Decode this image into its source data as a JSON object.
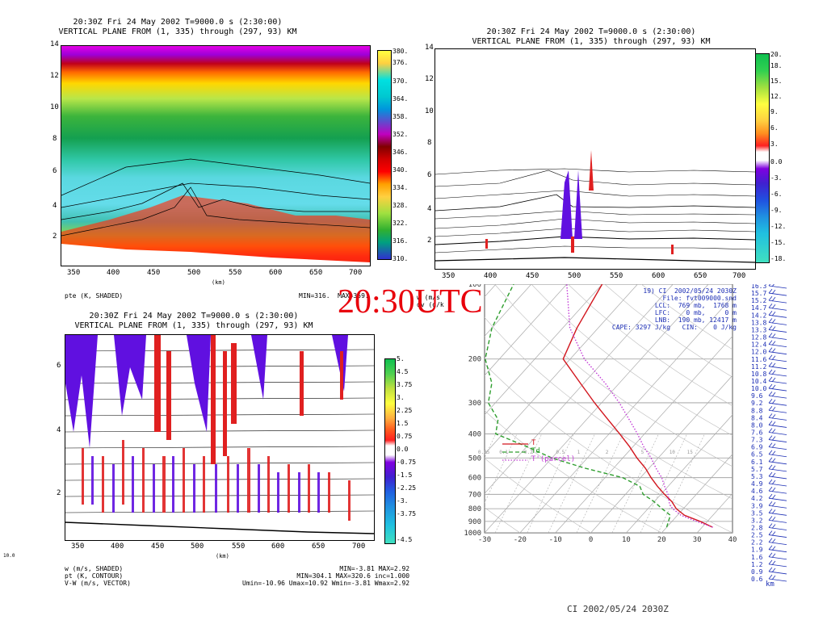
{
  "panel1": {
    "title1": "20:30Z Fri 24 May 2002      T=9000.0 s (2:30:00)",
    "title2": "VERTICAL PLANE FROM (1, 335) through (297, 93) KM",
    "yticks": [
      "14",
      "12",
      "10",
      "8",
      "6",
      "4",
      "2"
    ],
    "xticks": [
      "350",
      "400",
      "450",
      "500",
      "550",
      "600",
      "650",
      "700"
    ],
    "xunit": "(km)",
    "colorbar": [
      "380.",
      "376.",
      "370.",
      "364.",
      "358.",
      "352.",
      "346.",
      "340.",
      "334.",
      "328.",
      "322.",
      "316.",
      "310."
    ],
    "foot_left": "pte (K, SHADED)",
    "foot_right": "MIN=316.  MAX=359."
  },
  "panel2": {
    "title1": "20:30Z Fri 24 May 2002      T=9000.0 s (2:30:00)",
    "title2": "VERTICAL PLANE FROM (1, 335) through (297, 93) KM",
    "yticks": [
      "14",
      "12",
      "10",
      "8",
      "6",
      "4",
      "2"
    ],
    "xticks": [
      "350",
      "400",
      "450",
      "500",
      "550",
      "600",
      "650",
      "700"
    ],
    "colorbar": [
      "20.",
      "18.",
      "15.",
      "12.",
      "9.",
      "6.",
      "3.",
      "0.0",
      "-3.",
      "-6.",
      "-9.",
      "-12.",
      "-15.",
      "-18."
    ],
    "foot_top": "w (m/s",
    "foot_mid": "qv (g/k"
  },
  "panel3": {
    "title1": "20:30Z Fri 24 May 2002      T=9000.0 s (2:30:00)",
    "title2": "VERTICAL PLANE FROM (1, 335) through (297, 93) KM",
    "yticks": [
      "6",
      "4",
      "2"
    ],
    "xticks": [
      "350",
      "400",
      "450",
      "500",
      "550",
      "600",
      "650",
      "700"
    ],
    "xunit": "(km)",
    "corner": "10.0",
    "colorbar": [
      "5.",
      "4.5",
      "3.75",
      "3.",
      "2.25",
      "1.5",
      "0.75",
      "0.0",
      "-0.75",
      "-1.5",
      "-2.25",
      "-3.",
      "-3.75",
      "-4.5"
    ],
    "foot_left": "w (m/s, SHADED)\npt (K, CONTOUR)\nV-W (m/s, VECTOR)",
    "foot_right": "MIN=-3.81 MAX=2.92\nMIN=304.1 MAX=320.6 inc=1.000\nUmin=-10.96 Umax=10.92 Wmin=-3.81 Wmax=2.92"
  },
  "banner": "20:30UTC",
  "skewt": {
    "pticks": [
      "100",
      "200",
      "300",
      "400",
      "500",
      "600",
      "700",
      "800",
      "900",
      "1000"
    ],
    "tticks": [
      "-30",
      "-20",
      "-10",
      "0",
      "10",
      "20",
      "30",
      "40"
    ],
    "mix_labels": [
      "0.05",
      "0.1",
      "0.2",
      "0.5",
      "1",
      "2",
      "5",
      "10",
      "15"
    ],
    "heights": [
      "16.3",
      "15.7",
      "15.2",
      "14.7",
      "14.2",
      "13.8",
      "13.3",
      "12.8",
      "12.4",
      "12.0",
      "11.6",
      "11.2",
      "10.8",
      "10.4",
      "10.0",
      "9.6",
      "9.2",
      "8.8",
      "8.4",
      "8.0",
      "7.6",
      "7.3",
      "6.9",
      "6.5",
      "6.1",
      "5.7",
      "5.3",
      "4.9",
      "4.6",
      "4.2",
      "3.9",
      "3.5",
      "3.2",
      "2.8",
      "2.5",
      "2.2",
      "1.9",
      "1.6",
      "1.2",
      "0.9",
      "0.6"
    ],
    "km": "km",
    "info": "19) CI  2002/05/24 2030Z\nFile: fvt009000.snd\nLCL:  769 mb,  1768 m\nLFC:    0 mb,     0 m\nLNB:  190 mb, 12417 m\nCAPE: 3297 J/kg   CIN:    0 J/kg",
    "legend_T": "T",
    "legend_Td": "Td",
    "legend_parcel": "T'(parcel)",
    "caption": "CI   2002/05/24 2030Z",
    "colors": {
      "T": "#d2161e",
      "Td": "#2e9e2e",
      "parcel": "#c23bd6"
    }
  },
  "chart_data": [
    {
      "type": "heatmap",
      "title": "20:30Z Fri 24 May 2002 T=9000.0 s (2:30:00) VERTICAL PLANE FROM (1, 335) through (297, 93) KM",
      "xlabel": "(km)",
      "ylabel": "",
      "xlim": [
        340,
        720
      ],
      "ylim": [
        0,
        14
      ],
      "field": "pte (K, SHADED)",
      "min": 316,
      "max": 359,
      "colorbar_levels": [
        310,
        316,
        322,
        328,
        334,
        340,
        346,
        352,
        358,
        364,
        370,
        376,
        380
      ]
    },
    {
      "type": "heatmap",
      "title": "20:30Z Fri 24 May 2002 T=9000.0 s (2:30:00) VERTICAL PLANE FROM (1, 335) through (297, 93) KM",
      "xlim": [
        340,
        720
      ],
      "ylim": [
        0,
        14
      ],
      "colorbar_levels": [
        -18,
        -15,
        -12,
        -9,
        -6,
        -3,
        0,
        3,
        6,
        9,
        12,
        15,
        18,
        20
      ]
    },
    {
      "type": "heatmap",
      "title": "20:30Z Fri 24 May 2002 T=9000.0 s (2:30:00) VERTICAL PLANE FROM (1, 335) through (297, 93) KM",
      "xlabel": "(km)",
      "xlim": [
        340,
        720
      ],
      "ylim": [
        0,
        7
      ],
      "field": "w (m/s, SHADED)",
      "min": -3.81,
      "max": 2.92,
      "colorbar_levels": [
        -4.5,
        -3.75,
        -3,
        -2.25,
        -1.5,
        -0.75,
        0,
        0.75,
        1.5,
        2.25,
        3,
        3.75,
        4.5,
        5
      ]
    },
    {
      "type": "line",
      "title": "CI 2002/05/24 2030Z",
      "xlabel": "",
      "ylabel": "",
      "xlim": [
        -30,
        40
      ],
      "ylim": [
        1000,
        100
      ],
      "series": [
        {
          "name": "T",
          "pressure": [
            950,
            900,
            850,
            800,
            750,
            700,
            650,
            600,
            550,
            500,
            450,
            400,
            350,
            300,
            250,
            200,
            150,
            100
          ],
          "values": [
            33,
            28,
            22,
            18,
            15,
            11,
            7,
            3,
            -1,
            -6,
            -11,
            -17,
            -24,
            -32,
            -41,
            -52,
            -56,
            -60
          ]
        },
        {
          "name": "Td",
          "pressure": [
            950,
            900,
            850,
            800,
            750,
            700,
            650,
            600,
            550,
            500,
            450,
            400,
            350,
            300,
            250,
            200,
            150,
            100
          ],
          "values": [
            20,
            19,
            18,
            14,
            10,
            5,
            2,
            -5,
            -18,
            -30,
            -40,
            -52,
            -55,
            -62,
            -66,
            -74,
            -80,
            -85
          ]
        },
        {
          "name": "T'(parcel)",
          "pressure": [
            950,
            900,
            850,
            800,
            769,
            700,
            650,
            600,
            550,
            500,
            450,
            400,
            350,
            300,
            250,
            200,
            150,
            100
          ],
          "values": [
            33,
            27,
            21,
            17,
            15,
            12,
            9,
            6,
            2,
            -2,
            -7,
            -12,
            -18,
            -25,
            -34,
            -46,
            -58,
            -70
          ]
        }
      ]
    }
  ]
}
